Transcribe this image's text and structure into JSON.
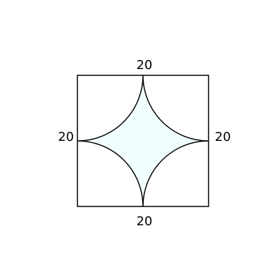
{
  "diagram": {
    "labels": {
      "top": "20",
      "left": "20",
      "right": "20",
      "bottom": "20"
    },
    "colors": {
      "stroke": "#000000",
      "fill": "#f0fffe",
      "background": "#ffffff"
    }
  }
}
